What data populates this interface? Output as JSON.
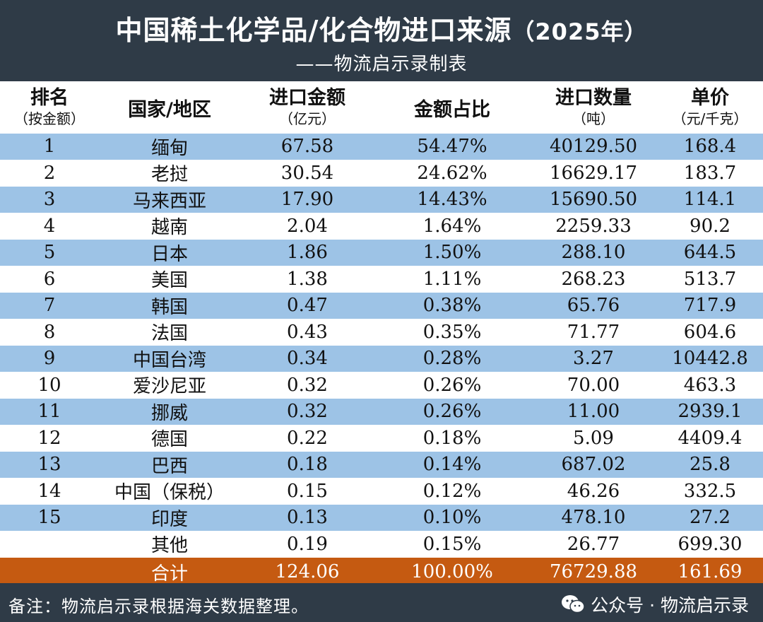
{
  "header": {
    "title": "中国稀土化学品/化合物进口来源",
    "year": "（2025年）",
    "subtitle": "——物流启示录制表"
  },
  "columns": {
    "rank_main": "排名",
    "rank_sub": "（按金额）",
    "country": "国家/地区",
    "amount_main": "进口金额",
    "amount_sub": "（亿元）",
    "share": "金额占比",
    "qty_main": "进口数量",
    "qty_sub": "（吨）",
    "price_main": "单价",
    "price_sub": "（元/千克）"
  },
  "rows": [
    {
      "rank": "1",
      "country": "缅甸",
      "amount": "67.58",
      "share": "54.47%",
      "qty": "40129.50",
      "price": "168.4"
    },
    {
      "rank": "2",
      "country": "老挝",
      "amount": "30.54",
      "share": "24.62%",
      "qty": "16629.17",
      "price": "183.7"
    },
    {
      "rank": "3",
      "country": "马来西亚",
      "amount": "17.90",
      "share": "14.43%",
      "qty": "15690.50",
      "price": "114.1"
    },
    {
      "rank": "4",
      "country": "越南",
      "amount": "2.04",
      "share": "1.64%",
      "qty": "2259.33",
      "price": "90.2"
    },
    {
      "rank": "5",
      "country": "日本",
      "amount": "1.86",
      "share": "1.50%",
      "qty": "288.10",
      "price": "644.5"
    },
    {
      "rank": "6",
      "country": "美国",
      "amount": "1.38",
      "share": "1.11%",
      "qty": "268.23",
      "price": "513.7"
    },
    {
      "rank": "7",
      "country": "韩国",
      "amount": "0.47",
      "share": "0.38%",
      "qty": "65.76",
      "price": "717.9"
    },
    {
      "rank": "8",
      "country": "法国",
      "amount": "0.43",
      "share": "0.35%",
      "qty": "71.77",
      "price": "604.6"
    },
    {
      "rank": "9",
      "country": "中国台湾",
      "amount": "0.34",
      "share": "0.28%",
      "qty": "3.27",
      "price": "10442.8"
    },
    {
      "rank": "10",
      "country": "爱沙尼亚",
      "amount": "0.32",
      "share": "0.26%",
      "qty": "70.00",
      "price": "463.3"
    },
    {
      "rank": "11",
      "country": "挪威",
      "amount": "0.32",
      "share": "0.26%",
      "qty": "11.00",
      "price": "2939.1"
    },
    {
      "rank": "12",
      "country": "德国",
      "amount": "0.22",
      "share": "0.18%",
      "qty": "5.09",
      "price": "4409.4"
    },
    {
      "rank": "13",
      "country": "巴西",
      "amount": "0.18",
      "share": "0.14%",
      "qty": "687.02",
      "price": "25.8"
    },
    {
      "rank": "14",
      "country": "中国（保税）",
      "amount": "0.15",
      "share": "0.12%",
      "qty": "46.26",
      "price": "332.5"
    },
    {
      "rank": "15",
      "country": "印度",
      "amount": "0.13",
      "share": "0.10%",
      "qty": "478.10",
      "price": "27.2"
    },
    {
      "rank": "",
      "country": "其他",
      "amount": "0.19",
      "share": "0.15%",
      "qty": "26.77",
      "price": "699.30"
    }
  ],
  "total": {
    "label": "合计",
    "amount": "124.06",
    "share": "100.00%",
    "qty": "76729.88",
    "price": "161.69"
  },
  "footer": {
    "note": "备注：物流启示录根据海关数据整理。",
    "brand": "公众号 · 物流启示录"
  },
  "colors": {
    "background": "#2f3b47",
    "row_blue": "#9dc3e6",
    "row_white": "#ffffff",
    "total_row": "#c55a11"
  }
}
